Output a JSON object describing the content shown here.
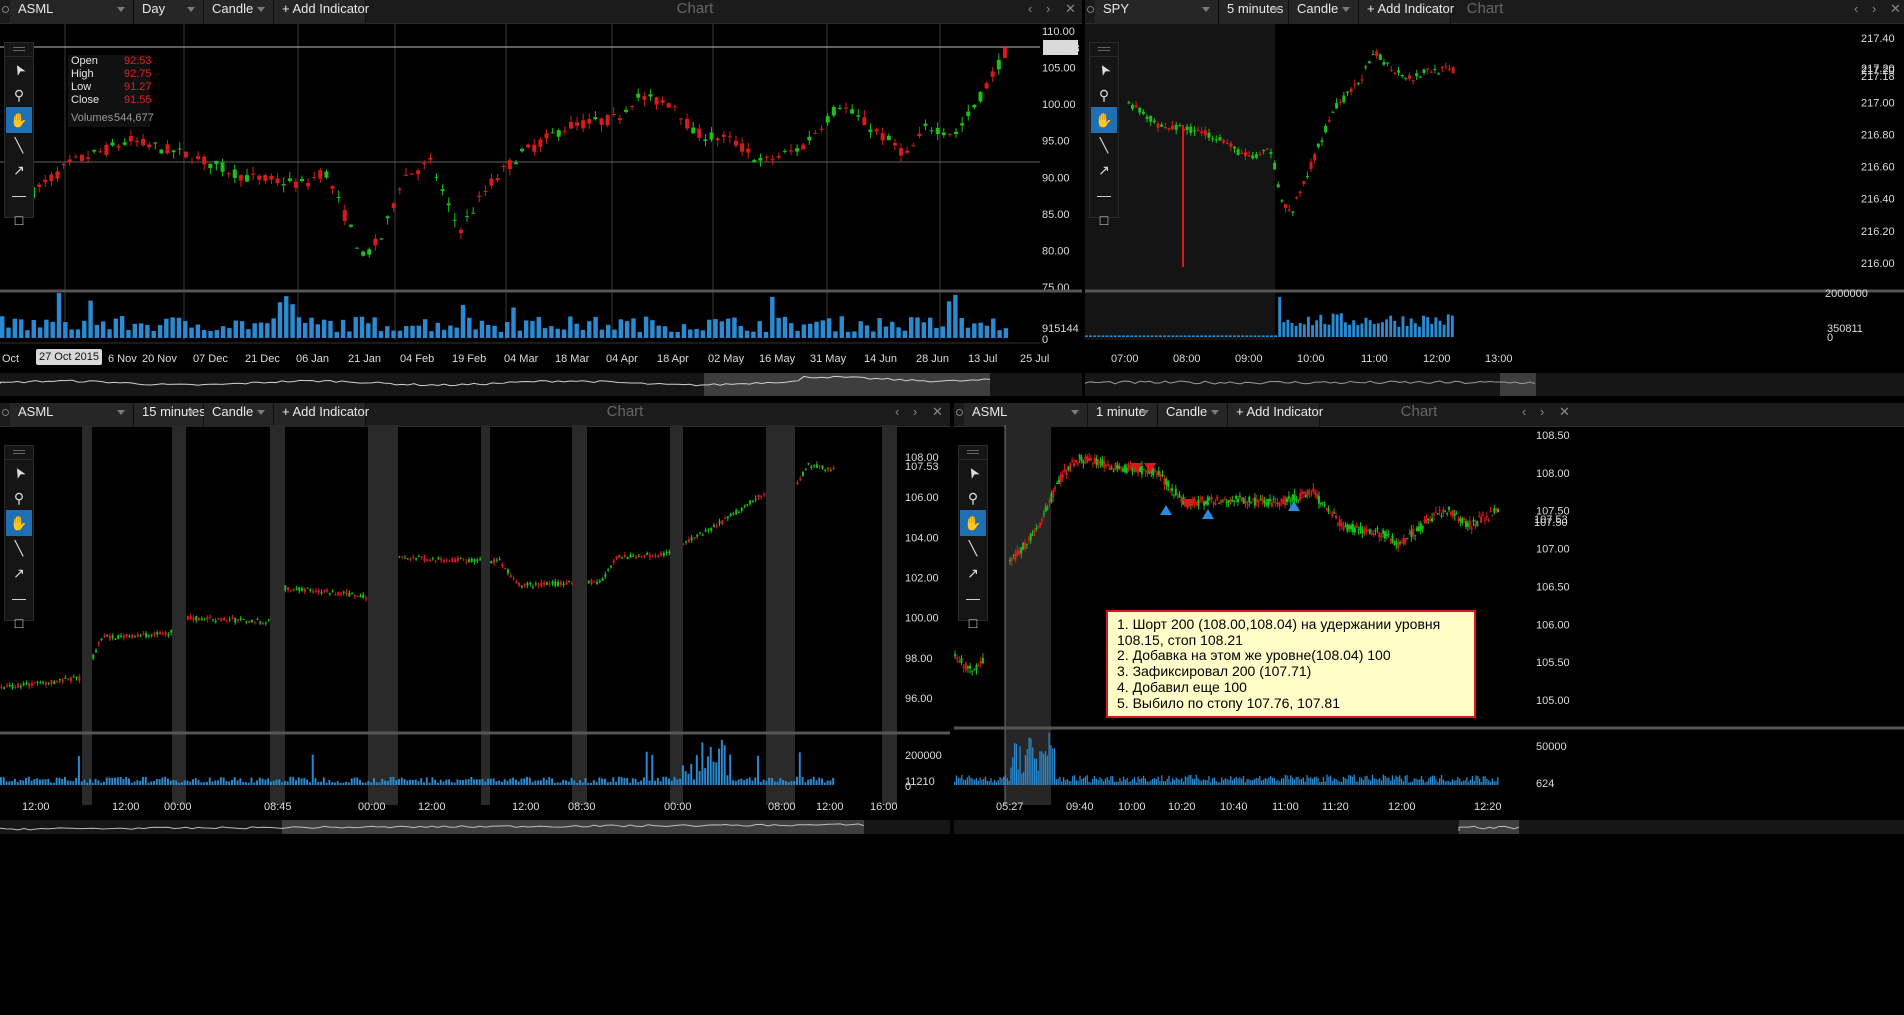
{
  "colors": {
    "up": "#19c119",
    "down": "#d81a1a",
    "volume": "#2a8ad2",
    "accent": "#1e6fb4"
  },
  "toolbar_icons": [
    "menu-grip-icon",
    "cursor-arrow-icon",
    "magnifier-icon",
    "hand-pan-icon",
    "line-tool-icon",
    "arrow-tool-icon",
    "horizontal-line-icon",
    "rectangle-tool-icon"
  ],
  "panels": {
    "tl": {
      "symbol": "ASML",
      "interval": "Day",
      "type": "Candle",
      "add": "+ Add Indicator",
      "title": "Chart",
      "yticks": [
        "110.00",
        "105.00",
        "100.00",
        "95.00",
        "90.00",
        "85.00",
        "80.00",
        "75.00"
      ],
      "price_tag": "107.58",
      "vol_label": "915144",
      "vol_zero": "0",
      "xticks": [
        "Oct",
        "6 Nov",
        "20 Nov",
        "07 Dec",
        "21 Dec",
        "06 Jan",
        "21 Jan",
        "04 Feb",
        "19 Feb",
        "04 Mar",
        "18 Mar",
        "04 Apr",
        "18 Apr",
        "02 May",
        "16 May",
        "31 May",
        "14 Jun",
        "28 Jun",
        "13 Jul",
        "25 Jul"
      ],
      "date_badge": "27 Oct 2015",
      "ohlc": {
        "open_label": "Open",
        "open": "92.53",
        "high_label": "High",
        "high": "92.75",
        "low_label": "Low",
        "low": "91.27",
        "close_label": "Close",
        "close": "91.55",
        "vol_label": "Volumes",
        "volume": "544,677"
      }
    },
    "tr": {
      "symbol": "SPY",
      "interval": "5 minutes",
      "type": "Candle",
      "add": "+ Add Indicator",
      "title": "Chart",
      "yticks": [
        "217.40",
        "217.20",
        "217.00",
        "216.80",
        "216.60",
        "216.40",
        "216.20",
        "216.00"
      ],
      "price_tags": [
        "217.20",
        "217.18"
      ],
      "vol_label": "350811",
      "vol_top": "2000000",
      "vol_zero": "0",
      "xticks": [
        "07:00",
        "08:00",
        "09:00",
        "10:00",
        "11:00",
        "12:00",
        "13:00"
      ]
    },
    "bl": {
      "symbol": "ASML",
      "interval": "15 minutes",
      "type": "Candle",
      "add": "+ Add Indicator",
      "title": "Chart",
      "yticks": [
        "108.00",
        "106.00",
        "104.00",
        "102.00",
        "100.00",
        "98.00",
        "96.00"
      ],
      "price_tag": "107.53",
      "vol_top": "200000",
      "vol_label": "11210",
      "vol_zero": "0",
      "xticks": [
        "12:00",
        "12:00",
        "00:00",
        "08:45",
        "00:00",
        "12:00",
        "12:00",
        "08:30",
        "00:00",
        "08:00",
        "12:00",
        "16:00"
      ]
    },
    "br": {
      "symbol": "ASML",
      "interval": "1 minute",
      "type": "Candle",
      "add": "+ Add Indicator",
      "title": "Chart",
      "yticks": [
        "108.50",
        "108.00",
        "107.50",
        "107.00",
        "106.50",
        "106.00",
        "105.50",
        "105.00"
      ],
      "price_tags": [
        "107.53",
        "107.50"
      ],
      "vol_top": "50000",
      "vol_label": "624",
      "xticks": [
        "05:27",
        "09:40",
        "10:00",
        "10:20",
        "10:40",
        "11:00",
        "11:20",
        "12:00",
        "12:20"
      ],
      "note": [
        "1. Шорт 200 (108.00,108.04) на удержании уровня",
        "  108.15, стоп 108.21",
        "2. Добавка на этом же уровне(108.04) 100",
        "3. Зафиксировал 200 (107.71)",
        "4. Добавил еще 100",
        "5. Выбило по стопу 107.76, 107.81"
      ]
    }
  }
}
